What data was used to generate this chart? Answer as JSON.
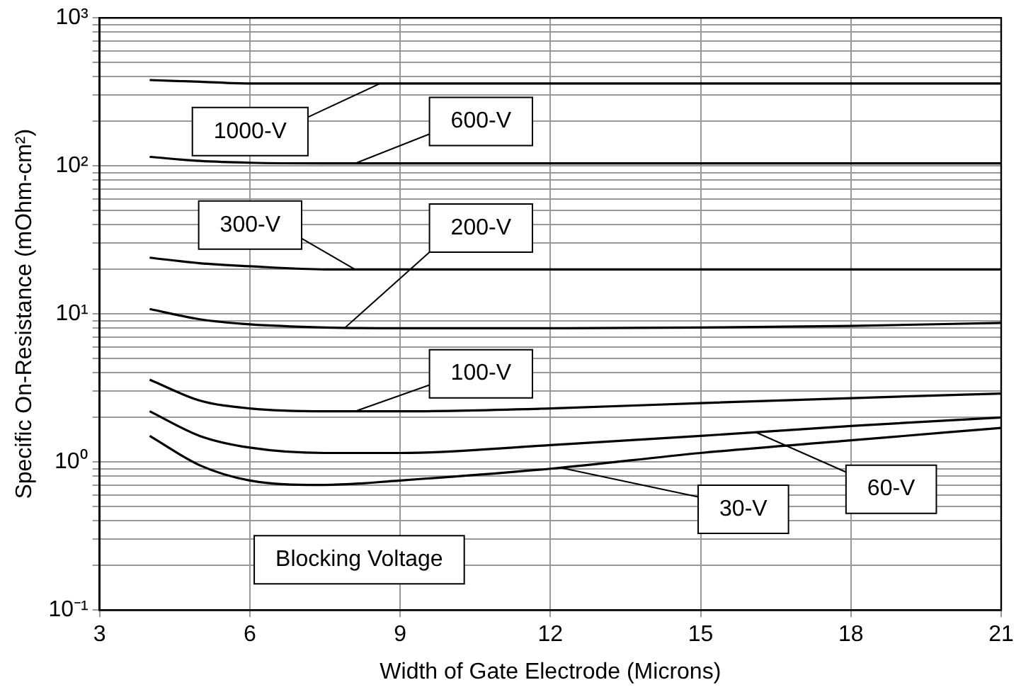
{
  "chart_data": {
    "type": "line",
    "xlabel": "Width of Gate Electrode (Microns)",
    "ylabel": "Specific On-Resistance (mOhm-cm²)",
    "x": [
      4,
      5,
      6,
      7.5,
      9,
      12,
      15,
      18,
      21
    ],
    "series": [
      {
        "name": "1000-V",
        "color": "#000000",
        "values": [
          380,
          370,
          360,
          360,
          360,
          360,
          360,
          360,
          360
        ]
      },
      {
        "name": "600-V",
        "color": "#000000",
        "values": [
          115,
          108,
          105,
          104,
          104,
          104,
          104,
          104,
          104
        ]
      },
      {
        "name": "300-V",
        "color": "#000000",
        "values": [
          24,
          22,
          21,
          20,
          20,
          20,
          20,
          20,
          20
        ]
      },
      {
        "name": "200-V",
        "color": "#000000",
        "values": [
          10.8,
          9.2,
          8.5,
          8.1,
          8,
          8,
          8.1,
          8.3,
          8.7
        ]
      },
      {
        "name": "100-V",
        "color": "#000000",
        "values": [
          3.6,
          2.6,
          2.3,
          2.2,
          2.2,
          2.3,
          2.5,
          2.7,
          2.9
        ]
      },
      {
        "name": "60-V",
        "color": "#000000",
        "values": [
          2.2,
          1.5,
          1.25,
          1.15,
          1.15,
          1.3,
          1.5,
          1.75,
          2
        ]
      },
      {
        "name": "30-V",
        "color": "#000000",
        "values": [
          1.5,
          0.95,
          0.75,
          0.7,
          0.75,
          0.9,
          1.15,
          1.4,
          1.7
        ]
      }
    ],
    "annotations": [
      "Blocking Voltage"
    ],
    "log": "y",
    "xlim": [
      3,
      21
    ],
    "xticks": [
      3,
      6,
      9,
      12,
      15,
      18,
      21
    ],
    "ylim": [
      0.1,
      1000
    ],
    "yticks": [
      {
        "value": 0.1,
        "label": "10⁻¹"
      },
      {
        "value": 0.2,
        "label": null
      },
      {
        "value": 0.3,
        "label": null
      },
      {
        "value": 0.4,
        "label": null
      },
      {
        "value": 0.5,
        "label": null
      },
      {
        "value": 0.6,
        "label": null
      },
      {
        "value": 0.7,
        "label": null
      },
      {
        "value": 0.8,
        "label": null
      },
      {
        "value": 0.9,
        "label": null
      },
      {
        "value": 1,
        "label": "10⁰"
      },
      {
        "value": 2,
        "label": null
      },
      {
        "value": 3,
        "label": null
      },
      {
        "value": 4,
        "label": null
      },
      {
        "value": 5,
        "label": null
      },
      {
        "value": 6,
        "label": null
      },
      {
        "value": 7,
        "label": null
      },
      {
        "value": 8,
        "label": null
      },
      {
        "value": 9,
        "label": null
      },
      {
        "value": 10,
        "label": "10¹"
      },
      {
        "value": 20,
        "label": null
      },
      {
        "value": 30,
        "label": null
      },
      {
        "value": 40,
        "label": null
      },
      {
        "value": 50,
        "label": null
      },
      {
        "value": 60,
        "label": null
      },
      {
        "value": 70,
        "label": null
      },
      {
        "value": 80,
        "label": null
      },
      {
        "value": 90,
        "label": null
      },
      {
        "value": 100,
        "label": "10²"
      },
      {
        "value": 200,
        "label": null
      },
      {
        "value": 300,
        "label": null
      },
      {
        "value": 400,
        "label": null
      },
      {
        "value": 500,
        "label": null
      },
      {
        "value": 600,
        "label": null
      },
      {
        "value": 700,
        "label": null
      },
      {
        "value": 800,
        "label": null
      },
      {
        "value": 900,
        "label": null
      },
      {
        "value": 1000,
        "label": "10³"
      }
    ],
    "grid": true,
    "legend": false,
    "marker": "none",
    "line_style": "solid"
  }
}
